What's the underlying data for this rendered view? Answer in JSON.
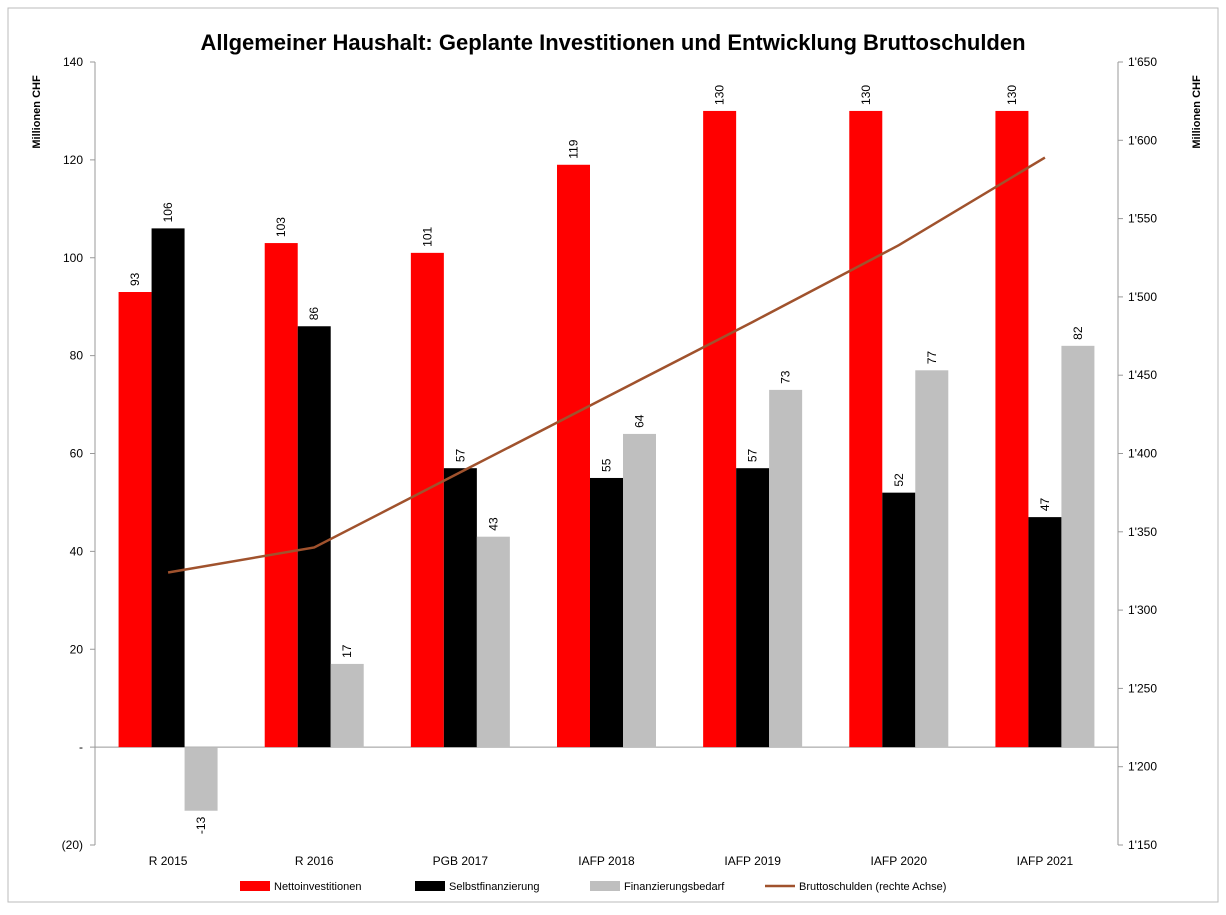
{
  "chart_data": {
    "type": "bar",
    "title": "Allgemeiner Haushalt: Geplante Investitionen und Entwicklung Bruttoschulden",
    "y_label": "Millionen CHF",
    "y2_label": "Millionen CHF",
    "categories": [
      "R 2015",
      "R 2016",
      "PGB 2017",
      "IAFP 2018",
      "IAFP 2019",
      "IAFP 2020",
      "IAFP 2021"
    ],
    "series": [
      {
        "name": "Nettoinvestitionen",
        "color": "#ff0000",
        "values": [
          93,
          103,
          101,
          119,
          130,
          130,
          130
        ]
      },
      {
        "name": "Selbstfinanzierung",
        "color": "#000000",
        "values": [
          106,
          86,
          57,
          55,
          57,
          52,
          47
        ]
      },
      {
        "name": "Finanzierungsbedarf",
        "color": "#bfbfbf",
        "values": [
          -13,
          17,
          43,
          64,
          73,
          77,
          82
        ]
      },
      {
        "name": "Bruttoschulden (rechte Achse)",
        "color": "#a0522d",
        "type": "line",
        "axis": "y2",
        "values": [
          1324,
          1340,
          1388,
          1436,
          1484,
          1533,
          1589
        ]
      }
    ],
    "ylim": [
      -20,
      140
    ],
    "yticks": [
      {
        "value": -20,
        "label": "(20)"
      },
      {
        "value": 0,
        "label": "-"
      },
      20,
      40,
      60,
      80,
      100,
      120,
      140
    ],
    "y2lim": [
      1150,
      1650
    ],
    "y2ticks": [
      {
        "value": 1150,
        "label": "1'150"
      },
      {
        "value": 1200,
        "label": "1'200"
      },
      {
        "value": 1250,
        "label": "1'250"
      },
      {
        "value": 1300,
        "label": "1'300"
      },
      {
        "value": 1350,
        "label": "1'350"
      },
      {
        "value": 1400,
        "label": "1'400"
      },
      {
        "value": 1450,
        "label": "1'450"
      },
      {
        "value": 1500,
        "label": "1'500"
      },
      {
        "value": 1550,
        "label": "1'550"
      },
      {
        "value": 1600,
        "label": "1'600"
      },
      {
        "value": 1650,
        "label": "1'650"
      }
    ],
    "grid": false,
    "legend": "bottom"
  }
}
